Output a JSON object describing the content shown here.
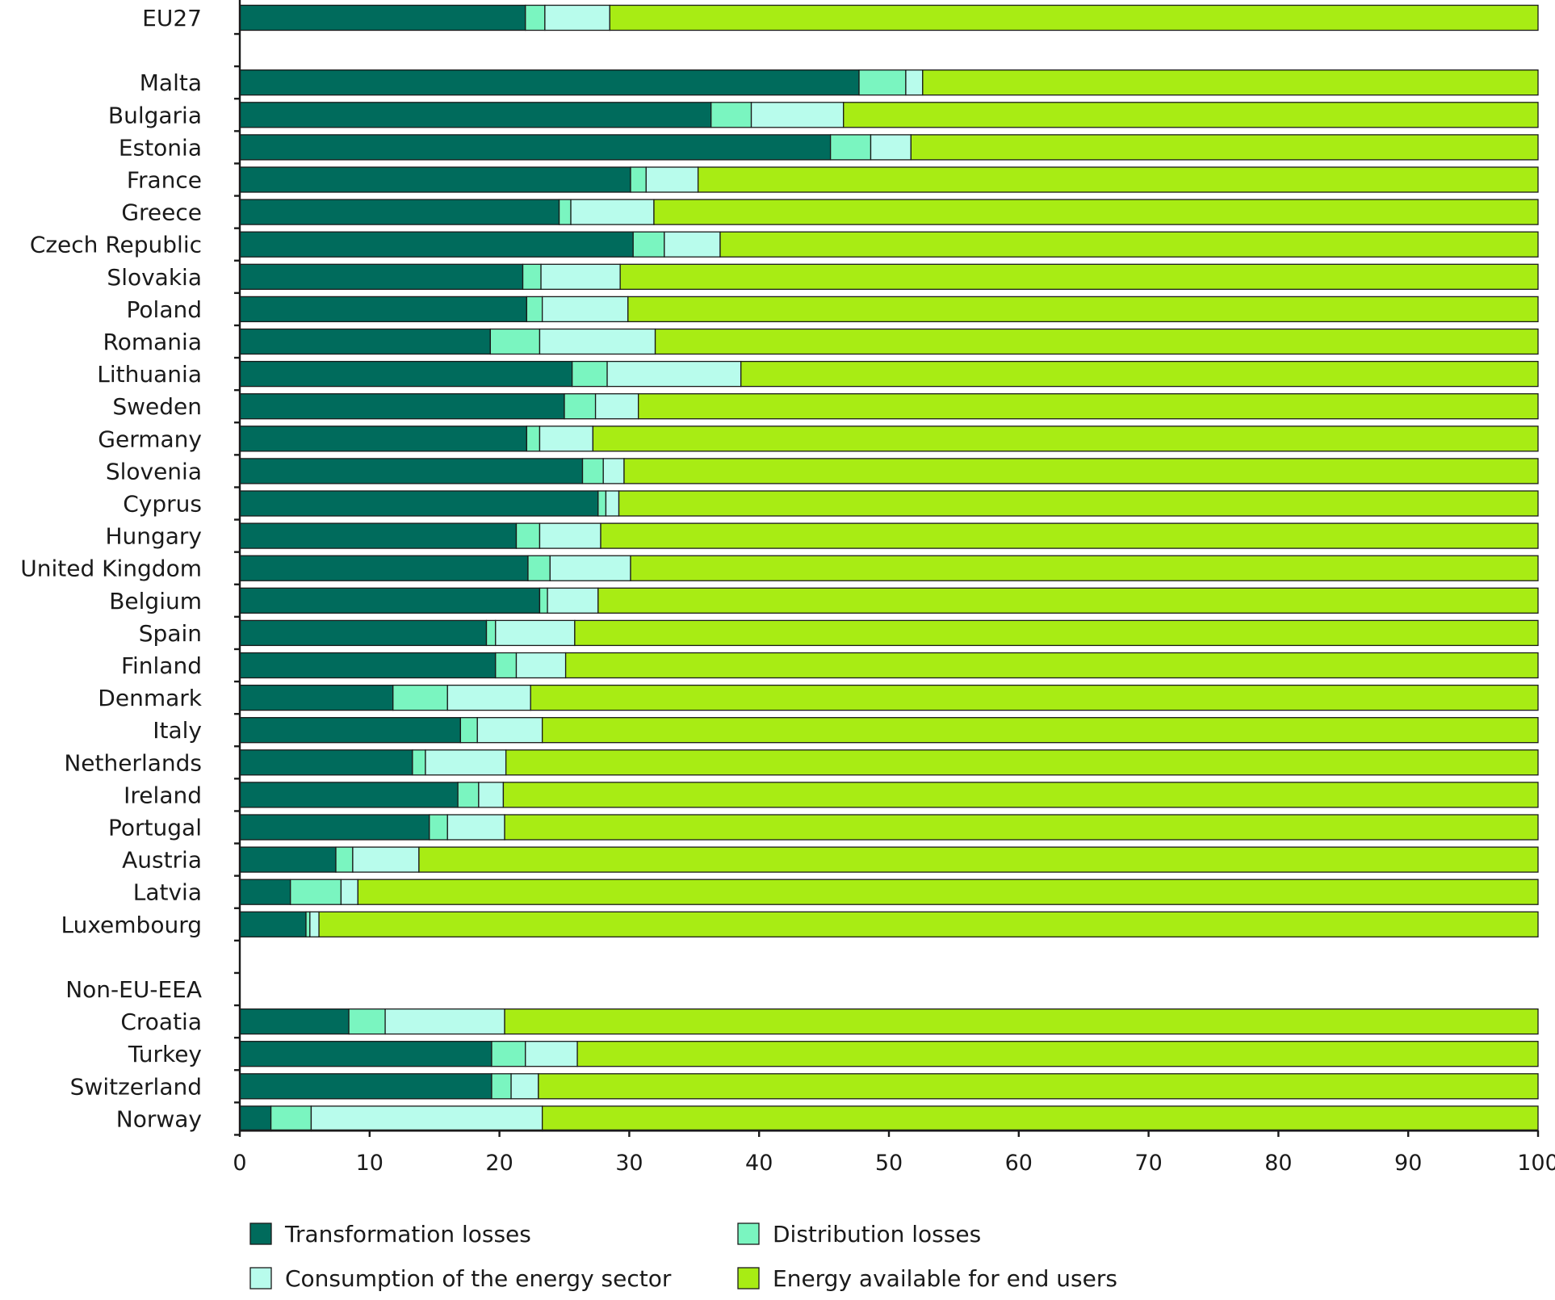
{
  "chart_data": {
    "type": "bar",
    "orientation": "horizontal",
    "stacked": true,
    "xlim": [
      0,
      100
    ],
    "x_ticks": [
      "0",
      "10",
      "20",
      "30",
      "40",
      "50",
      "60",
      "70",
      "80",
      "90",
      "100"
    ],
    "grid": false,
    "legend_position": "bottom",
    "categories": [
      "EU27",
      "",
      "Malta",
      "Bulgaria",
      "Estonia",
      "France",
      "Greece",
      "Czech Republic",
      "Slovakia",
      "Poland",
      "Romania",
      "Lithuania",
      "Sweden",
      "Germany",
      "Slovenia",
      "Cyprus",
      "Hungary",
      "United Kingdom",
      "Belgium",
      "Spain",
      "Finland",
      "Denmark",
      "Italy",
      "Netherlands",
      "Ireland",
      "Portugal",
      "Austria",
      "Latvia",
      "Luxembourg",
      "",
      "Non-EU-EEA",
      "Croatia",
      "Turkey",
      "Switzerland",
      "Norway"
    ],
    "series": [
      {
        "name": "Transformation losses",
        "color": "#006b5c",
        "values": [
          22.0,
          null,
          47.7,
          36.3,
          45.5,
          30.1,
          24.6,
          30.3,
          21.8,
          22.1,
          19.3,
          25.6,
          25.0,
          22.1,
          26.4,
          27.6,
          21.3,
          22.2,
          23.1,
          19.0,
          19.7,
          11.8,
          17.0,
          13.3,
          16.8,
          14.6,
          7.4,
          3.9,
          5.1,
          null,
          null,
          8.4,
          19.4,
          19.4,
          2.4
        ]
      },
      {
        "name": "Distribution losses",
        "color": "#7af5c0",
        "values": [
          1.5,
          null,
          3.6,
          3.1,
          3.1,
          1.2,
          0.9,
          2.4,
          1.4,
          1.2,
          3.8,
          2.7,
          2.4,
          1.0,
          1.6,
          0.6,
          1.8,
          1.7,
          0.6,
          0.7,
          1.6,
          4.2,
          1.3,
          1.0,
          1.6,
          1.4,
          1.3,
          3.9,
          0.3,
          null,
          null,
          2.8,
          2.6,
          1.5,
          3.1
        ]
      },
      {
        "name": "Consumption of the energy sector",
        "color": "#b8fcec",
        "values": [
          5.0,
          null,
          1.3,
          7.1,
          3.1,
          4.0,
          6.4,
          4.3,
          6.1,
          6.6,
          8.9,
          10.3,
          3.3,
          4.1,
          1.6,
          1.0,
          4.7,
          6.2,
          3.9,
          6.1,
          3.8,
          6.4,
          5.0,
          6.2,
          1.9,
          4.4,
          5.1,
          1.3,
          0.7,
          null,
          null,
          9.2,
          4.0,
          2.1,
          17.8
        ]
      },
      {
        "name": "Energy available for end users",
        "color": "#a8ec14",
        "values": [
          71.5,
          null,
          47.4,
          53.5,
          48.3,
          64.7,
          68.1,
          63.0,
          70.7,
          70.1,
          68.0,
          61.4,
          69.3,
          72.8,
          70.4,
          70.8,
          72.2,
          69.9,
          72.4,
          74.2,
          74.9,
          77.6,
          76.7,
          79.5,
          79.7,
          79.6,
          86.2,
          90.9,
          93.9,
          null,
          null,
          79.6,
          74.0,
          77.0,
          76.7
        ]
      }
    ]
  }
}
